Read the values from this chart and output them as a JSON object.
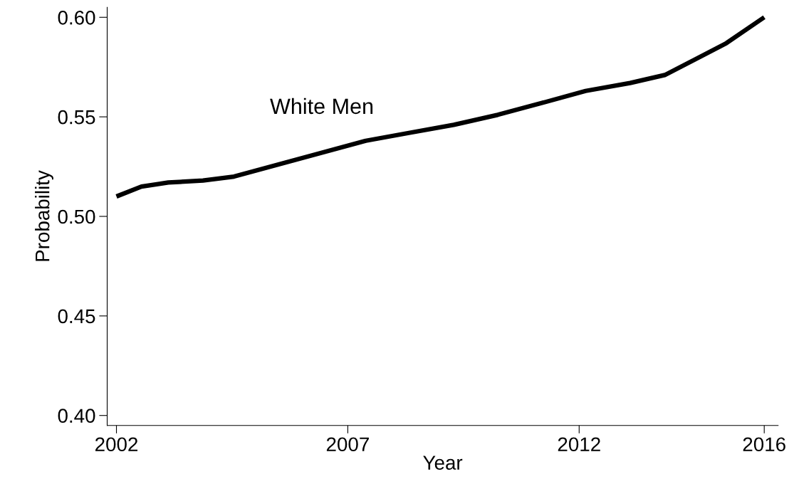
{
  "chart_data": {
    "type": "line",
    "xlabel": "Year",
    "ylabel": "Probability",
    "x": [
      2002.0,
      2002.54,
      2003.12,
      2003.87,
      2004.54,
      2005.49,
      2006.44,
      2007.39,
      2008.34,
      2009.29,
      2010.24,
      2011.2,
      2012.14,
      2013.1,
      2013.85,
      2014.52,
      2015.18,
      2016.0
    ],
    "series": [
      {
        "name": "White Men",
        "color": "#000000",
        "values": [
          0.51,
          0.515,
          0.517,
          0.518,
          0.52,
          0.526,
          0.532,
          0.538,
          0.542,
          0.546,
          0.551,
          0.557,
          0.563,
          0.567,
          0.571,
          0.579,
          0.587,
          0.6
        ]
      }
    ],
    "xlim": [
      2001.8,
      2016.3
    ],
    "ylim": [
      0.395,
      0.605
    ],
    "xticks": [
      2002,
      2007,
      2012,
      2016
    ],
    "yticks": [
      {
        "value": 0.4,
        "label": "0.40"
      },
      {
        "value": 0.45,
        "label": "0.45"
      },
      {
        "value": 0.5,
        "label": "0.50"
      },
      {
        "value": 0.55,
        "label": "0.55"
      },
      {
        "value": 0.6,
        "label": "0.60"
      }
    ],
    "grid": false,
    "legend": false
  }
}
